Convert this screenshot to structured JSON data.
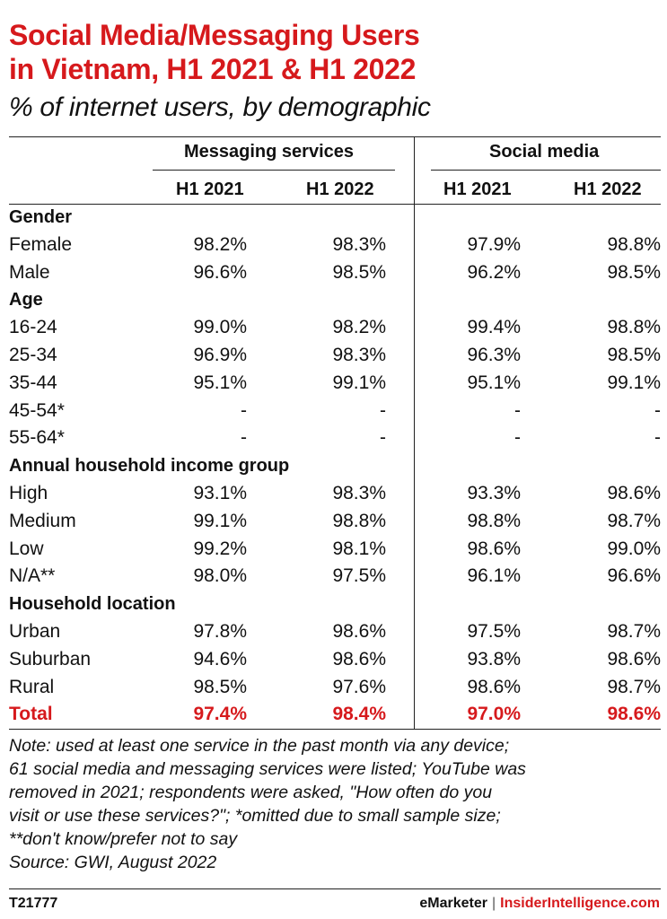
{
  "title_lines": [
    "Social Media/Messaging Users",
    "in Vietnam, H1 2021 & H1 2022"
  ],
  "subtitle": "% of internet users, by demographic",
  "colors": {
    "accent": "#d6191c",
    "text": "#111111",
    "rule": "#222222"
  },
  "chart_data": {
    "type": "table",
    "column_groups": [
      "Messaging services",
      "Social media"
    ],
    "columns": [
      "H1 2021",
      "H1 2022",
      "H1 2021",
      "H1 2022"
    ],
    "rows": [
      {
        "kind": "group",
        "label": "Gender"
      },
      {
        "kind": "data",
        "label": "Female",
        "values": [
          "98.2%",
          "98.3%",
          "97.9%",
          "98.8%"
        ]
      },
      {
        "kind": "data",
        "label": "Male",
        "values": [
          "96.6%",
          "98.5%",
          "96.2%",
          "98.5%"
        ]
      },
      {
        "kind": "group",
        "label": "Age"
      },
      {
        "kind": "data",
        "label": "16-24",
        "values": [
          "99.0%",
          "98.2%",
          "99.4%",
          "98.8%"
        ]
      },
      {
        "kind": "data",
        "label": "25-34",
        "values": [
          "96.9%",
          "98.3%",
          "96.3%",
          "98.5%"
        ]
      },
      {
        "kind": "data",
        "label": "35-44",
        "values": [
          "95.1%",
          "99.1%",
          "95.1%",
          "99.1%"
        ]
      },
      {
        "kind": "data",
        "label": "45-54*",
        "values": [
          "-",
          "-",
          "-",
          "-"
        ]
      },
      {
        "kind": "data",
        "label": "55-64*",
        "values": [
          "-",
          "-",
          "-",
          "-"
        ]
      },
      {
        "kind": "group",
        "label": "Annual household income group"
      },
      {
        "kind": "data",
        "label": "High",
        "values": [
          "93.1%",
          "98.3%",
          "93.3%",
          "98.6%"
        ]
      },
      {
        "kind": "data",
        "label": "Medium",
        "values": [
          "99.1%",
          "98.8%",
          "98.8%",
          "98.7%"
        ]
      },
      {
        "kind": "data",
        "label": "Low",
        "values": [
          "99.2%",
          "98.1%",
          "98.6%",
          "99.0%"
        ]
      },
      {
        "kind": "data",
        "label": "N/A**",
        "values": [
          "98.0%",
          "97.5%",
          "96.1%",
          "96.6%"
        ]
      },
      {
        "kind": "group",
        "label": "Household location"
      },
      {
        "kind": "data",
        "label": "Urban",
        "values": [
          "97.8%",
          "98.6%",
          "97.5%",
          "98.7%"
        ]
      },
      {
        "kind": "data",
        "label": "Suburban",
        "values": [
          "94.6%",
          "98.6%",
          "93.8%",
          "98.6%"
        ]
      },
      {
        "kind": "data",
        "label": "Rural",
        "values": [
          "98.5%",
          "97.6%",
          "98.6%",
          "98.7%"
        ]
      },
      {
        "kind": "total",
        "label": "Total",
        "values": [
          "97.4%",
          "98.4%",
          "97.0%",
          "98.6%"
        ]
      }
    ]
  },
  "note_lines": [
    "Note: used at least one service in the past month via any device;",
    "61 social media and messaging services were listed; YouTube was",
    "removed in 2021; respondents were asked, \"How often do you",
    "visit or use these services?\"; *omitted due to small sample size;",
    "**don't know/prefer not to say",
    "Source: GWI, August 2022"
  ],
  "footer": {
    "chart_id": "T21777",
    "brand": "eMarketer",
    "separator": "|",
    "brand2": "InsiderIntelligence.com"
  }
}
